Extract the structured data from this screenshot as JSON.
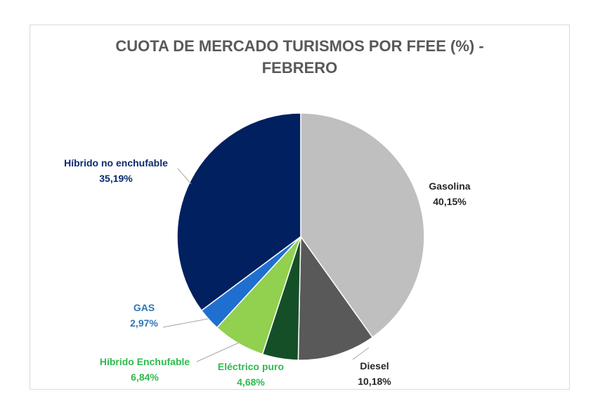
{
  "chart_data": {
    "type": "pie",
    "title_line1": "CUOTA DE MERCADO TURISMOS POR FFEE (%) -",
    "title_line2": "FEBRERO",
    "slices": [
      {
        "name": "Gasolina",
        "value": 40.15,
        "value_label": "40,15%",
        "color": "#bfbfbf",
        "label_color": "#262626"
      },
      {
        "name": "Diesel",
        "value": 10.18,
        "value_label": "10,18%",
        "color": "#595959",
        "label_color": "#262626"
      },
      {
        "name": "Eléctrico puro",
        "value": 4.68,
        "value_label": "4,68%",
        "color": "#154f28",
        "label_color": "#2dbb4e"
      },
      {
        "name": "Híbrido Enchufable",
        "value": 6.84,
        "value_label": "6,84%",
        "color": "#92d050",
        "label_color": "#2dbb4e"
      },
      {
        "name": "GAS",
        "value": 2.97,
        "value_label": "2,97%",
        "color": "#1f6fd1",
        "label_color": "#2e75b6"
      },
      {
        "name": "Híbrido no enchufable",
        "value": 35.19,
        "value_label": "35,19%",
        "color": "#002060",
        "label_color": "#0b2a6f"
      }
    ],
    "legend": "none",
    "data_labels": true
  }
}
